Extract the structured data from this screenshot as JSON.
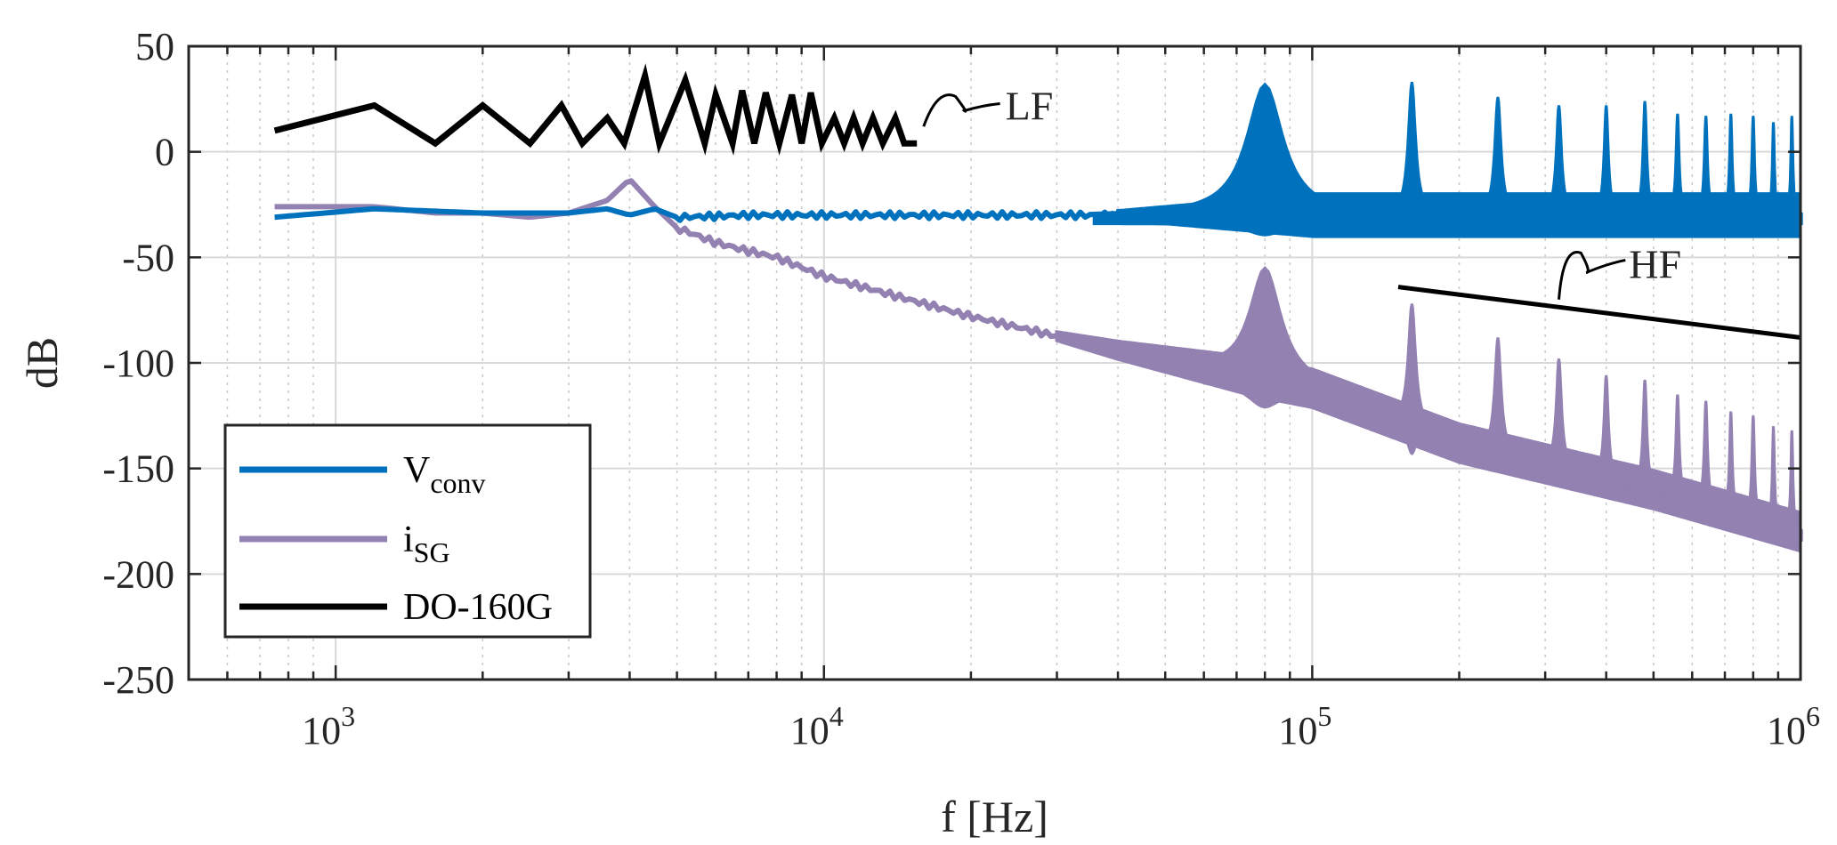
{
  "chart_data": {
    "type": "line",
    "title": "",
    "xlabel": "f [Hz]",
    "ylabel": "dB",
    "xscale": "log",
    "xlim": [
      500,
      1000000
    ],
    "ylim": [
      -250,
      50
    ],
    "grid": true,
    "minor_grid_x": true,
    "y_ticks": [
      50,
      0,
      -50,
      -100,
      -150,
      -200,
      -250
    ],
    "y_tick_labels": [
      "50",
      "0",
      "-50",
      "-100",
      "-150",
      "-200",
      "-250"
    ],
    "x_ticks": [
      1000,
      10000,
      100000,
      1000000
    ],
    "x_tick_bases": [
      "10",
      "10",
      "10",
      "10"
    ],
    "x_tick_exponents": [
      "3",
      "4",
      "5",
      "6"
    ],
    "legend_position": "bottom-left",
    "series": [
      {
        "name": "V_conv",
        "label_main": "V",
        "label_sub": "conv",
        "color": "#0072BD",
        "baseline": [
          [
            750,
            -31
          ],
          [
            1200,
            -27
          ],
          [
            2000,
            -29
          ],
          [
            3000,
            -29
          ],
          [
            3600,
            -27
          ],
          [
            4000,
            -30
          ],
          [
            4500,
            -27
          ],
          [
            5000,
            -31
          ],
          [
            7000,
            -30
          ],
          [
            10000,
            -30
          ],
          [
            20000,
            -30
          ],
          [
            40000,
            -30
          ],
          [
            1000000,
            -30
          ]
        ],
        "peaks": [
          {
            "f": 80000,
            "top": 32,
            "bottom": -36,
            "width": 0.35
          },
          {
            "f": 160000,
            "top": 33,
            "bottom": -36,
            "width": 0.07
          },
          {
            "f": 240000,
            "top": 26,
            "bottom": -36,
            "width": 0.06
          },
          {
            "f": 320000,
            "top": 22,
            "bottom": -36,
            "width": 0.05
          },
          {
            "f": 400000,
            "top": 22,
            "bottom": -36,
            "width": 0.04
          },
          {
            "f": 480000,
            "top": 24,
            "bottom": -36,
            "width": 0.035
          },
          {
            "f": 560000,
            "top": 18,
            "bottom": -36,
            "width": 0.03
          },
          {
            "f": 640000,
            "top": 17,
            "bottom": -36,
            "width": 0.03
          },
          {
            "f": 720000,
            "top": 18,
            "bottom": -36,
            "width": 0.025
          },
          {
            "f": 800000,
            "top": 17,
            "bottom": -36,
            "width": 0.025
          },
          {
            "f": 880000,
            "top": 14,
            "bottom": -36,
            "width": 0.02
          },
          {
            "f": 960000,
            "top": 17,
            "bottom": -36,
            "width": 0.02
          }
        ],
        "band_start": 40000,
        "band_width": 8
      },
      {
        "name": "i_SG",
        "label_main": "i",
        "label_sub": "SG",
        "color": "#9281B1",
        "baseline": [
          [
            750,
            -26
          ],
          [
            1200,
            -26
          ],
          [
            1600,
            -29
          ],
          [
            2000,
            -29
          ],
          [
            2500,
            -31
          ],
          [
            3000,
            -29
          ],
          [
            3600,
            -23
          ],
          [
            4000,
            -13
          ],
          [
            4500,
            -26
          ],
          [
            5000,
            -36
          ],
          [
            6000,
            -43
          ],
          [
            7000,
            -47
          ],
          [
            8000,
            -50
          ],
          [
            10000,
            -59
          ],
          [
            20000,
            -78
          ],
          [
            40000,
            -94
          ],
          [
            100000,
            -112
          ],
          [
            200000,
            -138
          ],
          [
            500000,
            -160
          ],
          [
            1000000,
            -180
          ]
        ],
        "peaks": [
          {
            "f": 80000,
            "top": -55,
            "bottom": -118,
            "width": 0.3
          },
          {
            "f": 160000,
            "top": -72,
            "bottom": -140,
            "width": 0.07
          },
          {
            "f": 240000,
            "top": -88,
            "bottom": -145,
            "width": 0.06
          },
          {
            "f": 320000,
            "top": -98,
            "bottom": -150,
            "width": 0.05
          },
          {
            "f": 400000,
            "top": -106,
            "bottom": -155,
            "width": 0.04
          },
          {
            "f": 480000,
            "top": -108,
            "bottom": -158,
            "width": 0.035
          },
          {
            "f": 560000,
            "top": -115,
            "bottom": -160,
            "width": 0.03
          },
          {
            "f": 640000,
            "top": -118,
            "bottom": -163,
            "width": 0.03
          },
          {
            "f": 720000,
            "top": -123,
            "bottom": -167,
            "width": 0.025
          },
          {
            "f": 800000,
            "top": -125,
            "bottom": -170,
            "width": 0.025
          },
          {
            "f": 880000,
            "top": -130,
            "bottom": -174,
            "width": 0.02
          },
          {
            "f": 960000,
            "top": -132,
            "bottom": -180,
            "width": 0.02
          }
        ],
        "band_start": 30000,
        "band_width": 7
      },
      {
        "name": "DO-160G",
        "label_main": "DO-160G",
        "label_sub": "",
        "color": "#000000",
        "lf_points": [
          [
            750,
            10
          ],
          [
            1200,
            22
          ],
          [
            1600,
            4
          ],
          [
            2000,
            22
          ],
          [
            2500,
            4
          ],
          [
            2900,
            22
          ],
          [
            3200,
            4
          ],
          [
            3600,
            16
          ],
          [
            3900,
            4
          ],
          [
            4300,
            36
          ],
          [
            4600,
            4
          ],
          [
            5200,
            34
          ],
          [
            5700,
            4
          ],
          [
            6000,
            27
          ],
          [
            6500,
            4
          ],
          [
            6800,
            29
          ],
          [
            7200,
            4
          ],
          [
            7600,
            28
          ],
          [
            8100,
            4
          ],
          [
            8600,
            27
          ],
          [
            9000,
            4
          ],
          [
            9400,
            28
          ],
          [
            9900,
            4
          ],
          [
            10500,
            16
          ],
          [
            11000,
            4
          ],
          [
            11500,
            16
          ],
          [
            12000,
            4
          ],
          [
            12600,
            16
          ],
          [
            13200,
            4
          ],
          [
            14000,
            16
          ],
          [
            14600,
            4
          ],
          [
            15500,
            4
          ]
        ],
        "hf_points": [
          [
            150000,
            -64
          ],
          [
            1000000,
            -88
          ]
        ]
      }
    ],
    "annotations": [
      {
        "text": "LF",
        "f": 22000,
        "y": 22
      },
      {
        "text": "HF",
        "f": 420000,
        "y": -53
      }
    ]
  }
}
